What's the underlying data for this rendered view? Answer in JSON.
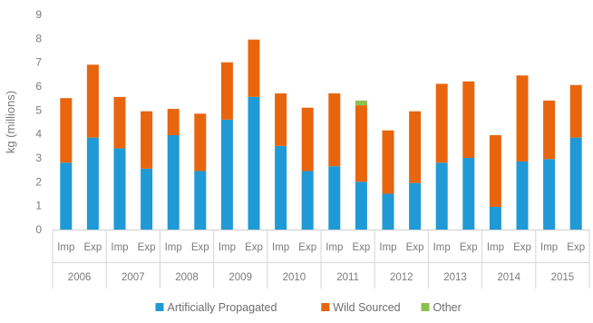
{
  "chart_data": {
    "type": "bar",
    "stacked": true,
    "ylabel": "kg (millions)",
    "ylim": [
      0,
      9
    ],
    "y_ticks": [
      0,
      1,
      2,
      3,
      4,
      5,
      6,
      7,
      8,
      9
    ],
    "grid": false,
    "legend_position": "bottom",
    "groups": [
      "2006",
      "2007",
      "2008",
      "2009",
      "2010",
      "2011",
      "2012",
      "2013",
      "2014",
      "2015"
    ],
    "subcategories": [
      "Imp",
      "Exp"
    ],
    "series": [
      {
        "name": "Artificially Propagated",
        "color": "#1f9ad6",
        "values": [
          2.8,
          3.85,
          3.4,
          2.55,
          3.95,
          2.45,
          4.6,
          5.55,
          3.5,
          2.45,
          2.65,
          2.0,
          1.5,
          1.95,
          2.8,
          3.0,
          0.95,
          2.85,
          2.95,
          3.85
        ]
      },
      {
        "name": "Wild Sourced",
        "color": "#e8650e",
        "values": [
          2.7,
          3.05,
          2.15,
          2.4,
          1.1,
          2.4,
          2.4,
          2.4,
          2.2,
          2.65,
          3.05,
          3.2,
          2.65,
          3.0,
          3.3,
          3.2,
          3.0,
          3.6,
          2.45,
          2.2
        ]
      },
      {
        "name": "Other",
        "color": "#8cc152",
        "values": [
          0,
          0,
          0,
          0,
          0,
          0,
          0,
          0,
          0,
          0,
          0,
          0.2,
          0,
          0,
          0,
          0,
          0,
          0,
          0,
          0
        ]
      }
    ]
  }
}
